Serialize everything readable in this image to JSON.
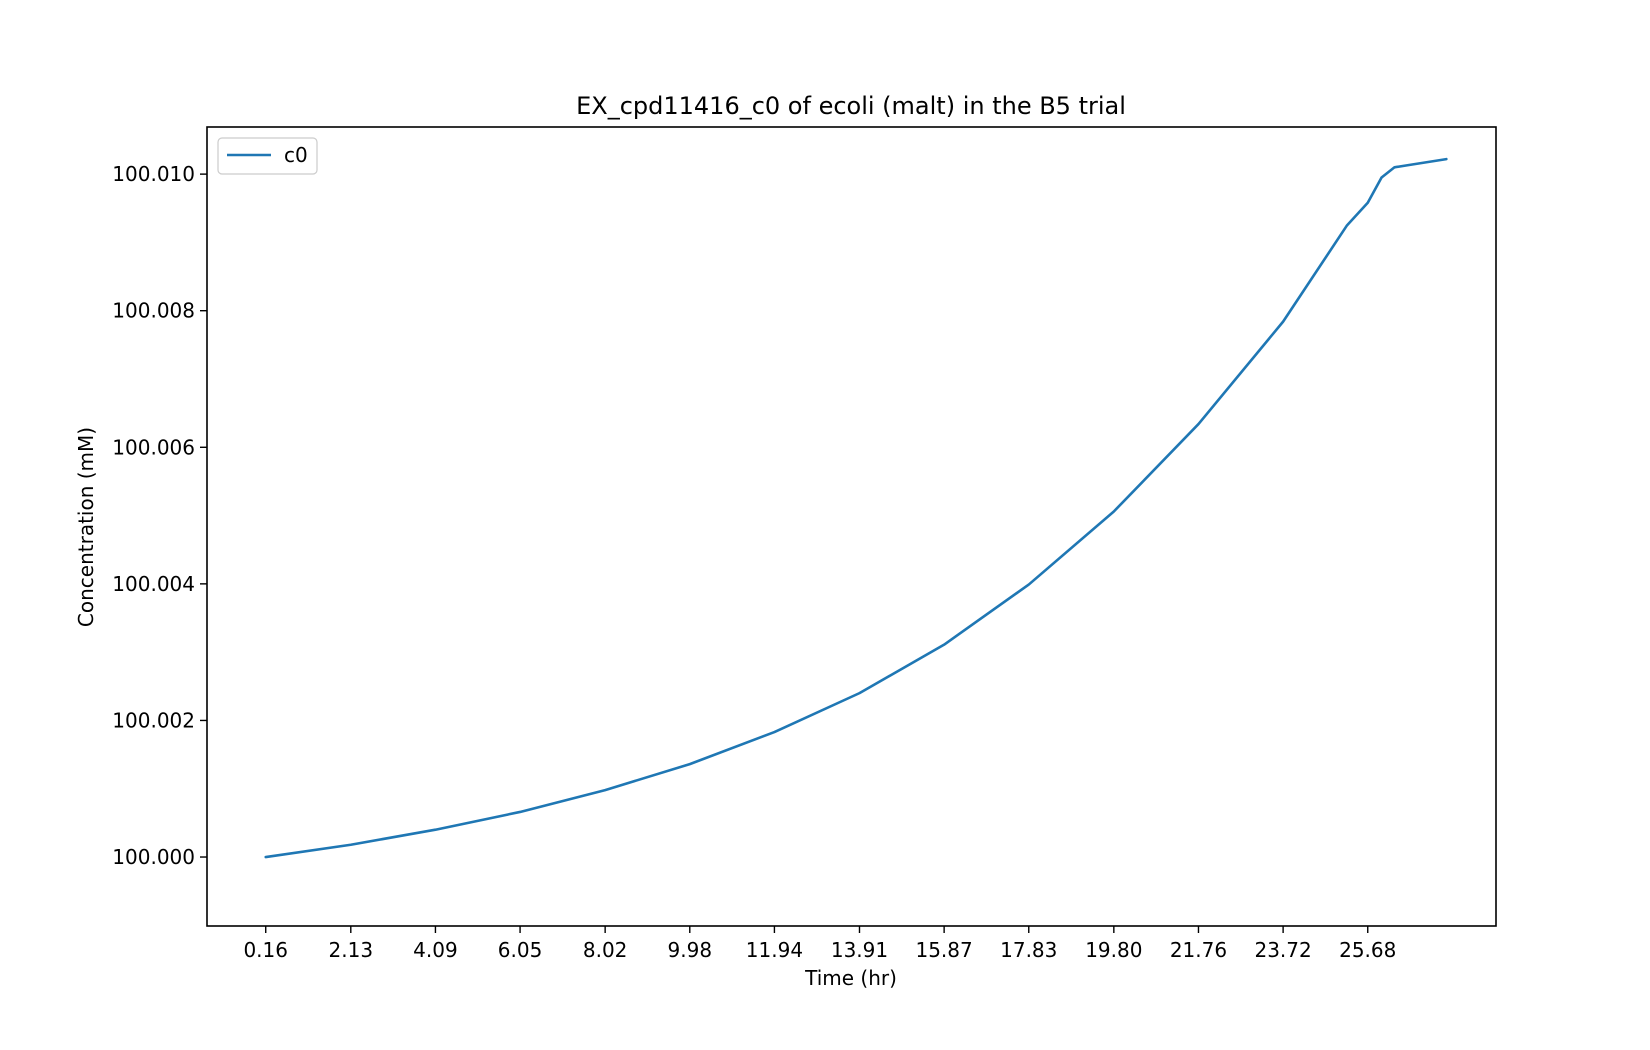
{
  "chart_data": {
    "type": "line",
    "title": "EX_cpd11416_c0 of ecoli (malt) in the B5 trial",
    "xlabel": "Time (hr)",
    "ylabel": "Concentration (mM)",
    "x_tick_labels": [
      "0.16",
      "2.13",
      "4.09",
      "6.05",
      "8.02",
      "9.98",
      "11.94",
      "13.91",
      "15.87",
      "17.83",
      "19.80",
      "21.76",
      "23.72",
      "25.68"
    ],
    "x_ticks": [
      0.16,
      2.13,
      4.09,
      6.05,
      8.02,
      9.98,
      11.94,
      13.91,
      15.87,
      17.83,
      19.8,
      21.76,
      23.72,
      25.68
    ],
    "y_tick_labels": [
      "100.000",
      "100.002",
      "100.004",
      "100.006",
      "100.008",
      "100.010"
    ],
    "y_ticks": [
      100.0,
      100.002,
      100.004,
      100.006,
      100.008,
      100.01
    ],
    "xlim": [
      -1.2,
      28.65
    ],
    "ylim": [
      99.99899,
      100.01069
    ],
    "grid": false,
    "legend_position": "top-left",
    "series": [
      {
        "name": "c0",
        "color": "#1f77b4",
        "x": [
          0.16,
          2.13,
          4.09,
          6.05,
          8.02,
          9.98,
          11.94,
          13.91,
          15.87,
          17.83,
          19.8,
          21.76,
          23.72,
          25.2,
          25.68,
          26.0,
          26.3,
          26.6,
          27.5
        ],
        "y": [
          100.0,
          100.00018,
          100.0004,
          100.00066,
          100.00098,
          100.00136,
          100.00183,
          100.0024,
          100.00311,
          100.00399,
          100.00506,
          100.00634,
          100.00784,
          100.00925,
          100.00958,
          100.00995,
          100.0101,
          100.01013,
          100.01022
        ]
      }
    ]
  }
}
